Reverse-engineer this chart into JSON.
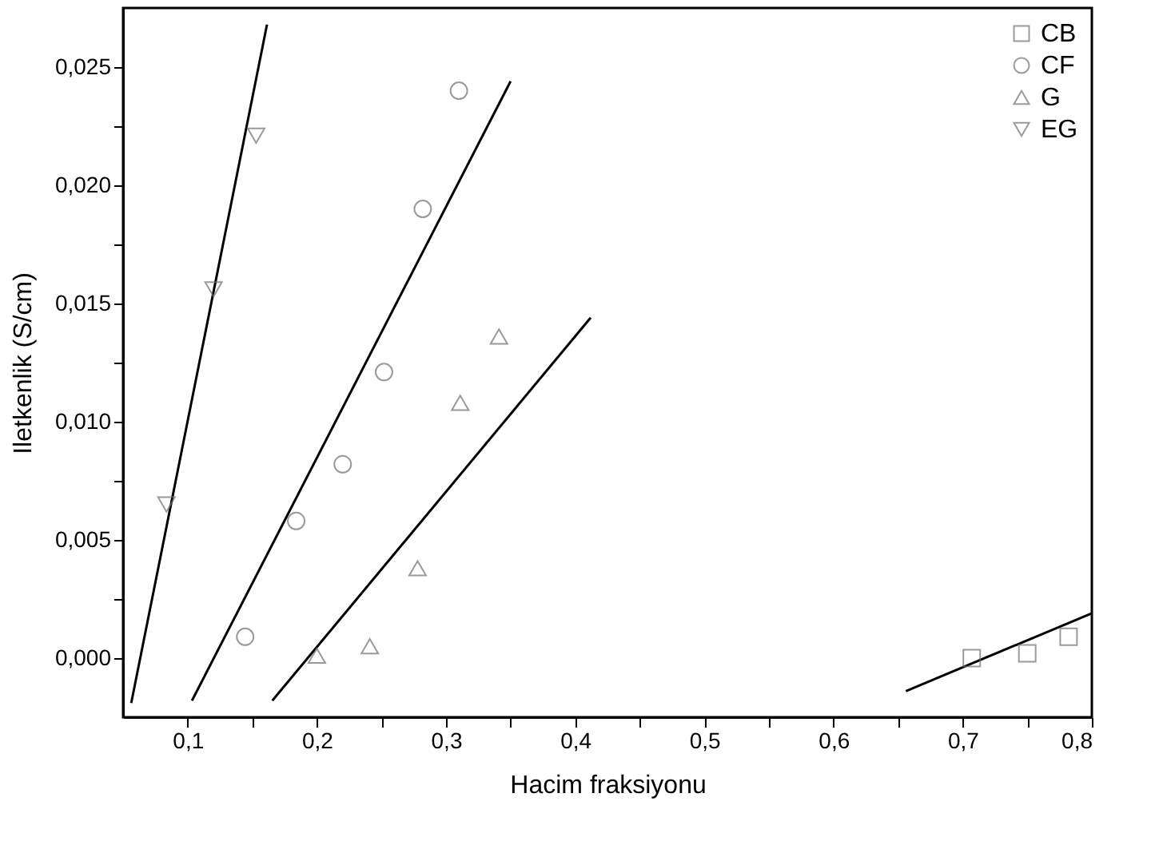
{
  "chart_data": {
    "type": "scatter",
    "xlabel": "Hacim fraksiyonu",
    "ylabel": "Iletkenlik (S/cm)",
    "xlim": [
      0.05,
      0.8
    ],
    "ylim": [
      -0.0025,
      0.0275
    ],
    "xticks": [
      {
        "value": 0.1,
        "label": "0,1"
      },
      {
        "value": 0.15,
        "label": null
      },
      {
        "value": 0.2,
        "label": "0,2"
      },
      {
        "value": 0.25,
        "label": null
      },
      {
        "value": 0.3,
        "label": "0,3"
      },
      {
        "value": 0.35,
        "label": null
      },
      {
        "value": 0.4,
        "label": "0,4"
      },
      {
        "value": 0.45,
        "label": null
      },
      {
        "value": 0.5,
        "label": "0,5"
      },
      {
        "value": 0.55,
        "label": null
      },
      {
        "value": 0.6,
        "label": "0,6"
      },
      {
        "value": 0.65,
        "label": null
      },
      {
        "value": 0.7,
        "label": "0,7"
      },
      {
        "value": 0.75,
        "label": null
      },
      {
        "value": 0.8,
        "label": "0,8"
      }
    ],
    "yticks": [
      {
        "value": 0,
        "label": "0,000"
      },
      {
        "value": 0.0025,
        "label": null
      },
      {
        "value": 0.005,
        "label": "0,005"
      },
      {
        "value": 0.0075,
        "label": null
      },
      {
        "value": 0.01,
        "label": "0,010"
      },
      {
        "value": 0.0125,
        "label": null
      },
      {
        "value": 0.015,
        "label": "0,015"
      },
      {
        "value": 0.0175,
        "label": null
      },
      {
        "value": 0.02,
        "label": "0,020"
      },
      {
        "value": 0.0225,
        "label": null
      },
      {
        "value": 0.025,
        "label": "0,025"
      }
    ],
    "grid": false,
    "legend": "top right",
    "series": [
      {
        "name": "CB",
        "marker": "square",
        "color": "#707070",
        "x": [
          0.707,
          0.75,
          0.782
        ],
        "values": [
          0.0,
          0.0002,
          0.0009
        ]
      },
      {
        "name": "CF",
        "marker": "circle",
        "color": "#707070",
        "x": [
          0.1445,
          0.184,
          0.22,
          0.252,
          0.282,
          0.31
        ],
        "values": [
          0.0009,
          0.0058,
          0.0082,
          0.0121,
          0.019,
          0.024
        ]
      },
      {
        "name": "G",
        "marker": "triangle",
        "color": "#707070",
        "x": [
          0.2,
          0.241,
          0.278,
          0.311,
          0.341
        ],
        "values": [
          0.0001,
          0.0005,
          0.0038,
          0.0108,
          0.0136
        ]
      },
      {
        "name": "EG",
        "marker": "triangle-down",
        "color": "#707070",
        "x": [
          0.0836,
          0.12,
          0.153
        ],
        "values": [
          0.0065,
          0.0156,
          0.0221
        ]
      },
      {
        "type": "line",
        "color": "#000000",
        "x": [
          0.656,
          0.8
        ],
        "values": [
          -0.0014,
          0.0019
        ]
      },
      {
        "type": "line",
        "color": "#000000",
        "x": [
          0.1033,
          0.35
        ],
        "values": [
          -0.0018,
          0.0244
        ]
      },
      {
        "type": "line",
        "color": "#000000",
        "x": [
          0.1655,
          0.412
        ],
        "values": [
          -0.0018,
          0.0144
        ]
      },
      {
        "type": "line",
        "color": "#000000",
        "x": [
          0.0563,
          0.1614
        ],
        "values": [
          -0.0019,
          0.0268
        ]
      }
    ]
  }
}
